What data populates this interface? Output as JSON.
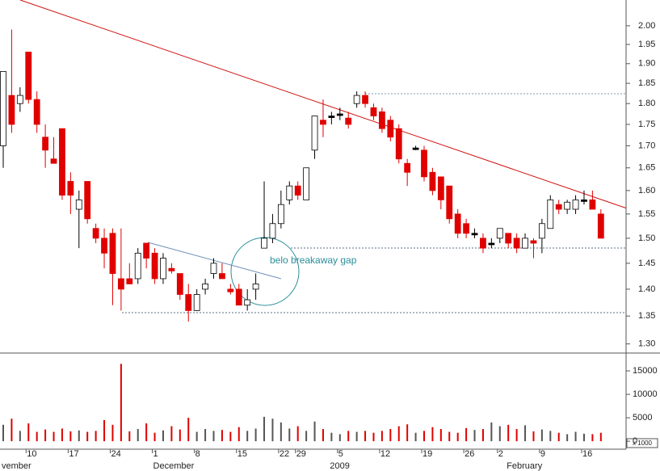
{
  "chart_data": {
    "type": "candlestick",
    "log_scale": true,
    "ylim": [
      1.284,
      2.071
    ],
    "yticks": [
      {
        "value": 2.0,
        "label": "2.00"
      },
      1.95,
      {
        "value": 1.9,
        "label": "1.90"
      },
      1.85,
      {
        "value": 1.8,
        "label": "1.80"
      },
      1.75,
      {
        "value": 1.7,
        "label": "1.70"
      },
      1.65,
      {
        "value": 1.6,
        "label": "1.60"
      },
      1.55,
      {
        "value": 1.5,
        "label": "1.50"
      },
      1.45,
      {
        "value": 1.4,
        "label": "1.40"
      },
      1.35,
      {
        "value": 1.3,
        "label": "1.30"
      }
    ],
    "volume_ylim": [
      -1700,
      18800
    ],
    "volume_yticks": [
      0,
      5000,
      10000,
      15000
    ],
    "volume_unit_label": "x 1000",
    "annotation": "belo breakaway gap",
    "up_color": "#ffffff",
    "down_color": "#e00000",
    "flat_color": "#000000",
    "volume_up_color": "#555555",
    "volume_down_color": "#e00000",
    "categories": [
      null,
      null,
      null,
      "10",
      null,
      null,
      null,
      null,
      "17",
      null,
      null,
      null,
      null,
      "24",
      null,
      null,
      null,
      null,
      "1",
      null,
      null,
      null,
      null,
      "8",
      null,
      null,
      null,
      null,
      "15",
      null,
      null,
      null,
      null,
      "22",
      null,
      "29",
      null,
      null,
      null,
      null,
      "5",
      null,
      null,
      null,
      null,
      "12",
      null,
      null,
      null,
      null,
      "19",
      null,
      null,
      null,
      null,
      "26",
      null,
      null,
      null,
      "2",
      null,
      null,
      null,
      null,
      "9",
      null,
      null,
      null,
      null,
      "16",
      null,
      null
    ],
    "month_categories": [
      "vember",
      null,
      null,
      null,
      null,
      null,
      null,
      null,
      null,
      null,
      null,
      null,
      null,
      null,
      null,
      null,
      null,
      null,
      "December",
      null,
      null,
      null,
      null,
      null,
      null,
      null,
      null,
      null,
      null,
      null,
      null,
      null,
      null,
      null,
      null,
      null,
      null,
      null,
      null,
      "2009",
      null,
      null,
      null,
      null,
      null,
      null,
      null,
      null,
      null,
      null,
      null,
      null,
      null,
      null,
      null,
      null,
      null,
      null,
      null,
      null,
      "February",
      null,
      null,
      null,
      null,
      null,
      null,
      null,
      null,
      null,
      null,
      null
    ],
    "open": [
      1.7,
      1.82,
      1.8,
      1.93,
      1.81,
      1.72,
      1.67,
      1.74,
      1.62,
      1.56,
      1.62,
      1.52,
      1.5,
      1.51,
      1.42,
      1.42,
      1.42,
      1.49,
      1.47,
      1.42,
      1.44,
      1.43,
      1.39,
      1.36,
      1.4,
      1.43,
      1.43,
      1.4,
      1.4,
      1.37,
      1.4,
      1.48,
      1.5,
      1.53,
      1.58,
      1.61,
      1.58,
      1.69,
      1.76,
      1.77,
      1.775,
      1.765,
      1.8,
      1.82,
      1.79,
      1.78,
      1.76,
      1.74,
      1.66,
      1.695,
      1.69,
      1.64,
      1.63,
      1.61,
      1.55,
      1.53,
      1.51,
      1.5,
      1.49,
      1.5,
      1.51,
      1.5,
      1.48,
      1.495,
      1.5,
      1.52,
      1.57,
      1.56,
      1.56,
      1.58,
      1.58,
      1.55
    ],
    "high": [
      1.88,
      1.99,
      1.84,
      1.93,
      1.83,
      1.75,
      1.72,
      1.74,
      1.64,
      1.6,
      1.62,
      1.53,
      1.52,
      1.52,
      1.52,
      1.45,
      1.48,
      1.49,
      1.48,
      1.47,
      1.45,
      1.43,
      1.41,
      1.4,
      1.42,
      1.46,
      1.45,
      1.41,
      1.41,
      1.4,
      1.43,
      1.62,
      1.55,
      1.6,
      1.62,
      1.62,
      1.65,
      1.77,
      1.81,
      1.78,
      1.79,
      1.78,
      1.83,
      1.83,
      1.8,
      1.79,
      1.77,
      1.75,
      1.67,
      1.7,
      1.7,
      1.65,
      1.63,
      1.61,
      1.56,
      1.54,
      1.52,
      1.51,
      1.5,
      1.52,
      1.51,
      1.51,
      1.51,
      1.5,
      1.54,
      1.59,
      1.58,
      1.58,
      1.59,
      1.6,
      1.6,
      1.56
    ],
    "low": [
      1.65,
      1.73,
      1.78,
      1.8,
      1.73,
      1.65,
      1.66,
      1.58,
      1.55,
      1.48,
      1.53,
      1.49,
      1.44,
      1.37,
      1.36,
      1.41,
      1.41,
      1.44,
      1.41,
      1.41,
      1.43,
      1.38,
      1.34,
      1.36,
      1.39,
      1.42,
      1.42,
      1.39,
      1.37,
      1.36,
      1.38,
      1.48,
      1.49,
      1.52,
      1.57,
      1.58,
      1.58,
      1.67,
      1.72,
      1.75,
      1.76,
      1.74,
      1.79,
      1.79,
      1.76,
      1.73,
      1.71,
      1.66,
      1.61,
      1.69,
      1.62,
      1.59,
      1.56,
      1.53,
      1.5,
      1.5,
      1.5,
      1.47,
      1.48,
      1.49,
      1.48,
      1.47,
      1.48,
      1.46,
      1.47,
      1.52,
      1.55,
      1.55,
      1.55,
      1.57,
      1.56,
      1.5
    ],
    "close": [
      1.88,
      1.75,
      1.82,
      1.81,
      1.75,
      1.69,
      1.66,
      1.59,
      1.59,
      1.58,
      1.54,
      1.5,
      1.47,
      1.43,
      1.4,
      1.41,
      1.47,
      1.46,
      1.42,
      1.46,
      1.435,
      1.39,
      1.36,
      1.39,
      1.41,
      1.45,
      1.42,
      1.395,
      1.37,
      1.38,
      1.41,
      1.5,
      1.53,
      1.57,
      1.61,
      1.59,
      1.65,
      1.77,
      1.75,
      1.77,
      1.775,
      1.75,
      1.82,
      1.8,
      1.77,
      1.74,
      1.72,
      1.67,
      1.64,
      1.695,
      1.63,
      1.6,
      1.58,
      1.54,
      1.51,
      1.51,
      1.51,
      1.48,
      1.49,
      1.52,
      1.49,
      1.48,
      1.5,
      1.49,
      1.53,
      1.58,
      1.56,
      1.575,
      1.58,
      1.58,
      1.56,
      1.5
    ],
    "volume": [
      3500,
      4800,
      2200,
      3800,
      2000,
      2500,
      2000,
      2700,
      2100,
      2300,
      2000,
      2200,
      4500,
      3500,
      16500,
      2100,
      2600,
      3800,
      1800,
      2300,
      3200,
      2500,
      5000,
      2000,
      2600,
      2200,
      2400,
      2000,
      3000,
      2200,
      2700,
      5200,
      4800,
      4000,
      2700,
      3200,
      2200,
      4200,
      2600,
      1800,
      1500,
      2200,
      2000,
      2200,
      1800,
      2200,
      2600,
      3200,
      3600,
      1800,
      2200,
      3000,
      2600,
      2000,
      1800,
      2800,
      2400,
      2600,
      4000,
      3200,
      3500,
      2600,
      3400,
      2100,
      2500,
      2200,
      1800,
      1500,
      2000,
      1600,
      1500,
      1800
    ]
  }
}
